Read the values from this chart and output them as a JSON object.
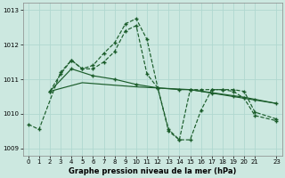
{
  "bg_color": "#cce8e0",
  "grid_color": "#b0d8d0",
  "line_color": "#1a5c2a",
  "xlabel": "Graphe pression niveau de la mer (hPa)",
  "xlim_min": -0.5,
  "xlim_max": 23.5,
  "ylim_min": 1008.8,
  "ylim_max": 1013.2,
  "yticks": [
    1009,
    1010,
    1011,
    1012,
    1013
  ],
  "xticks": [
    0,
    1,
    2,
    3,
    4,
    5,
    6,
    7,
    8,
    9,
    10,
    11,
    12,
    13,
    14,
    15,
    16,
    17,
    18,
    19,
    20,
    21,
    23
  ],
  "s1_x": [
    0,
    1,
    3,
    4,
    5,
    6,
    7,
    8,
    9,
    10,
    11,
    12,
    13,
    14,
    15,
    16,
    17,
    18,
    19,
    20,
    21,
    23
  ],
  "s1_y": [
    1009.7,
    1009.55,
    1011.2,
    1011.55,
    1011.3,
    1011.4,
    1011.75,
    1012.05,
    1012.6,
    1012.75,
    1012.15,
    1010.75,
    1009.5,
    1009.25,
    1009.25,
    1010.1,
    1010.7,
    1010.7,
    1010.7,
    1010.65,
    1010.05,
    1009.85
  ],
  "s2_x": [
    2,
    3,
    4,
    5,
    6,
    7,
    8,
    9,
    10,
    11,
    12,
    13,
    14,
    15,
    16,
    17,
    18,
    19,
    20,
    21,
    23
  ],
  "s2_y": [
    1010.65,
    1011.15,
    1011.55,
    1011.3,
    1011.3,
    1011.5,
    1011.8,
    1012.4,
    1012.55,
    1011.15,
    1010.75,
    1009.55,
    1009.25,
    1010.7,
    1010.7,
    1010.7,
    1010.7,
    1010.65,
    1010.45,
    1009.95,
    1009.8
  ],
  "s3_x": [
    2,
    4,
    6,
    8,
    10,
    12,
    14,
    15,
    17,
    19,
    21,
    23
  ],
  "s3_y": [
    1010.65,
    1011.3,
    1011.1,
    1011.0,
    1010.85,
    1010.75,
    1010.7,
    1010.7,
    1010.6,
    1010.5,
    1010.4,
    1010.3
  ],
  "s4_x": [
    2,
    5,
    10,
    15,
    20,
    23
  ],
  "s4_y": [
    1010.65,
    1010.9,
    1010.78,
    1010.7,
    1010.48,
    1010.3
  ]
}
